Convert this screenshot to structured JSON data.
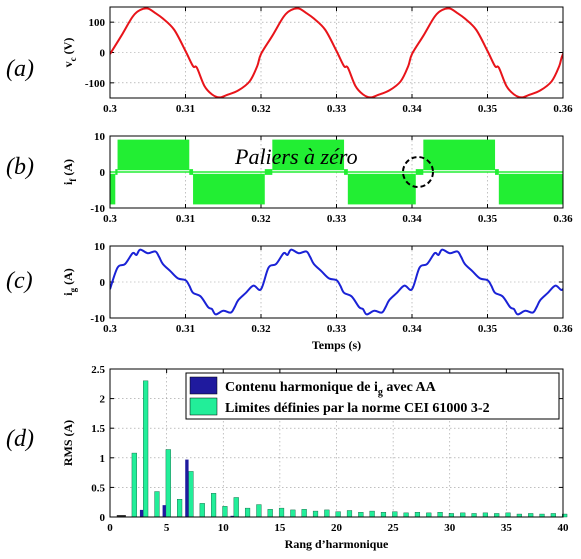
{
  "colors": {
    "vc": "#e8141a",
    "if": "#22ee33",
    "ig": "#1a22d6",
    "ig_bar": "#1f1a9e",
    "limit_bar": "#22ee99"
  },
  "chart_data": [
    {
      "id": "a",
      "panel_label": "(a)",
      "type": "line",
      "ylabel": "v",
      "ylabel_sub": "c",
      "ylabel_unit": " (V)",
      "xlim": [
        0.3,
        0.36
      ],
      "ylim": [
        -150,
        150
      ],
      "xticks": [
        0.3,
        0.31,
        0.32,
        0.33,
        0.34,
        0.35,
        0.36
      ],
      "xtick_labels": [
        "0.3",
        "0.31",
        "0.32",
        "0.33",
        "0.34",
        "0.35",
        "0.36"
      ],
      "yticks": [
        -100,
        0,
        100
      ],
      "ytick_labels": [
        "-100",
        "0",
        "100"
      ],
      "grid": true,
      "series": [
        {
          "x": [
            0.3,
            0.3015,
            0.303,
            0.304,
            0.305,
            0.306,
            0.307,
            0.3085,
            0.31,
            0.311,
            0.3115,
            0.3125,
            0.3135,
            0.3145,
            0.3155,
            0.317,
            0.3185,
            0.3195,
            0.32
          ],
          "y": [
            -5,
            55,
            118,
            140,
            145,
            130,
            112,
            75,
            5,
            -45,
            -50,
            -110,
            -138,
            -148,
            -140,
            -125,
            -95,
            -45,
            -5
          ],
          "period": 0.02
        }
      ]
    },
    {
      "id": "b",
      "panel_label": "(b)",
      "type": "line",
      "ylabel": "i",
      "ylabel_sub": "f",
      "ylabel_unit": " (A)",
      "xlim": [
        0.3,
        0.36
      ],
      "ylim": [
        -10,
        10
      ],
      "xticks": [
        0.3,
        0.31,
        0.32,
        0.33,
        0.34,
        0.35,
        0.36
      ],
      "xtick_labels": [
        "0.3",
        "0.31",
        "0.32",
        "0.33",
        "0.34",
        "0.35",
        "0.36"
      ],
      "yticks": [
        -10,
        0,
        10
      ],
      "ytick_labels": [
        "-10",
        "0",
        "10"
      ],
      "grid": true,
      "annotation": "Paliers à zéro",
      "series": [
        {
          "segments": [
            {
              "x0": 0.3,
              "x1": 0.3007,
              "level": -9
            },
            {
              "x0": 0.3007,
              "x1": 0.301,
              "level": 0
            },
            {
              "x0": 0.301,
              "x1": 0.3105,
              "level": 9
            },
            {
              "x0": 0.3105,
              "x1": 0.311,
              "level": 0
            },
            {
              "x0": 0.311,
              "x1": 0.3205,
              "level": -9
            },
            {
              "x0": 0.3205,
              "x1": 0.3215,
              "level": 0
            },
            {
              "x0": 0.3215,
              "x1": 0.331,
              "level": 9
            },
            {
              "x0": 0.331,
              "x1": 0.3315,
              "level": 0
            },
            {
              "x0": 0.3315,
              "x1": 0.3405,
              "level": -9
            },
            {
              "x0": 0.3405,
              "x1": 0.3415,
              "level": 0
            },
            {
              "x0": 0.3415,
              "x1": 0.351,
              "level": 9
            },
            {
              "x0": 0.351,
              "x1": 0.3515,
              "level": 0
            },
            {
              "x0": 0.3515,
              "x1": 0.36,
              "level": -9
            }
          ]
        }
      ]
    },
    {
      "id": "c",
      "panel_label": "(c)",
      "type": "line",
      "ylabel": "i",
      "ylabel_sub": "g",
      "ylabel_unit": " (A)",
      "xlabel": "Temps (s)",
      "xlim": [
        0.3,
        0.36
      ],
      "ylim": [
        -10,
        10
      ],
      "xticks": [
        0.3,
        0.31,
        0.32,
        0.33,
        0.34,
        0.35,
        0.36
      ],
      "xtick_labels": [
        "0.3",
        "0.31",
        "0.32",
        "0.33",
        "0.34",
        "0.35",
        "0.36"
      ],
      "yticks": [
        -10,
        0,
        10
      ],
      "ytick_labels": [
        "-10",
        "0",
        "10"
      ],
      "grid": true,
      "series": [
        {
          "x": [
            0.3,
            0.301,
            0.302,
            0.303,
            0.3035,
            0.304,
            0.305,
            0.306,
            0.3065,
            0.307,
            0.308,
            0.309,
            0.31,
            0.3105,
            0.311,
            0.312,
            0.313,
            0.3135,
            0.314,
            0.315,
            0.316,
            0.3165,
            0.317,
            0.318,
            0.319,
            0.32
          ],
          "y": [
            -2,
            4,
            5,
            8,
            7.5,
            9,
            8,
            8.5,
            7,
            5,
            3,
            1,
            0.5,
            -1,
            -3,
            -4,
            -7,
            -7.5,
            -9,
            -8,
            -8.5,
            -7,
            -5,
            -3,
            -1,
            -2
          ],
          "period": 0.02
        }
      ]
    },
    {
      "id": "d",
      "panel_label": "(d)",
      "type": "bar",
      "ylabel": "RMS (A)",
      "xlabel": "Rang d’harmonique",
      "xlim": [
        0,
        40
      ],
      "ylim": [
        0,
        2.5
      ],
      "xticks": [
        0,
        5,
        10,
        15,
        20,
        25,
        30,
        35,
        40
      ],
      "xtick_labels": [
        "0",
        "5",
        "10",
        "15",
        "20",
        "25",
        "30",
        "35",
        "40"
      ],
      "yticks": [
        0,
        0.5,
        1,
        1.5,
        2,
        2.5
      ],
      "ytick_labels": [
        "0",
        "0.5",
        "1",
        "1.5",
        "2",
        "2.5"
      ],
      "grid": true,
      "legend_position": "top-right",
      "categories": [
        2,
        3,
        4,
        5,
        6,
        7,
        8,
        9,
        10,
        11,
        12,
        13,
        14,
        15,
        16,
        17,
        18,
        19,
        20,
        21,
        22,
        23,
        24,
        25,
        26,
        27,
        28,
        29,
        30,
        31,
        32,
        33,
        34,
        35,
        36,
        37,
        38,
        39,
        40
      ],
      "series": [
        {
          "legend_main": "Contenu harmonique de i",
          "legend_sub": "g",
          "legend_tail": " avec AA",
          "values": [
            0,
            0.12,
            0,
            0.2,
            0,
            0.97,
            0,
            0,
            0,
            0.02,
            0,
            0,
            0,
            0,
            0,
            0,
            0,
            0,
            0,
            0,
            0,
            0,
            0,
            0,
            0,
            0,
            0,
            0,
            0,
            0,
            0,
            0,
            0,
            0,
            0,
            0,
            0,
            0,
            0
          ]
        },
        {
          "legend_main": "Limites définies par la norme CEI 61000 3-2",
          "values": [
            1.08,
            2.3,
            0.43,
            1.14,
            0.3,
            0.77,
            0.23,
            0.4,
            0.18,
            0.33,
            0.15,
            0.21,
            0.13,
            0.15,
            0.12,
            0.13,
            0.1,
            0.12,
            0.09,
            0.11,
            0.08,
            0.1,
            0.08,
            0.09,
            0.07,
            0.08,
            0.07,
            0.08,
            0.06,
            0.07,
            0.06,
            0.07,
            0.06,
            0.07,
            0.05,
            0.06,
            0.05,
            0.06,
            0.05
          ]
        }
      ]
    }
  ]
}
